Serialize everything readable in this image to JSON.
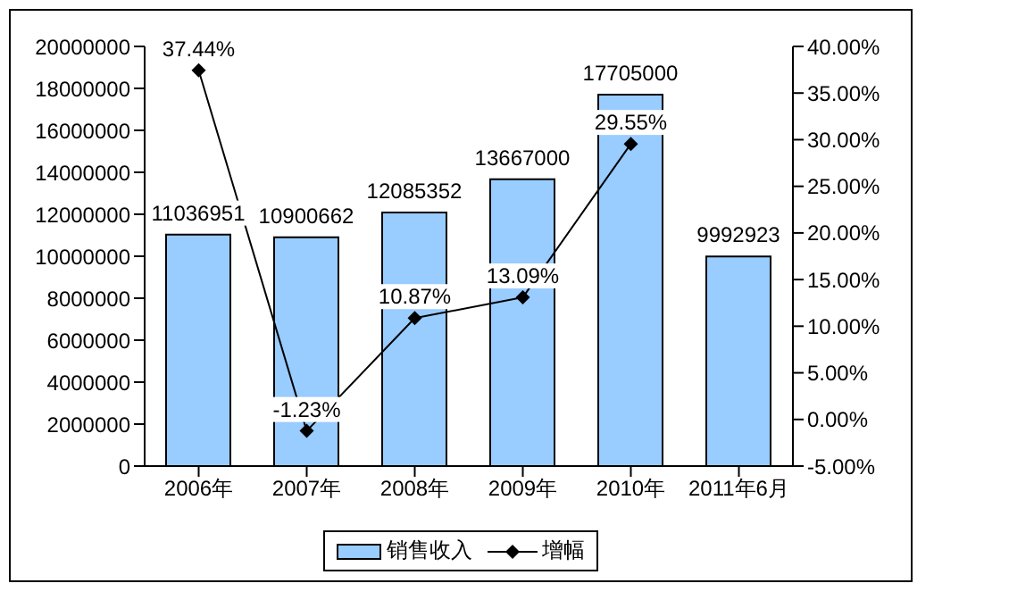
{
  "chart_data": {
    "type": "bar",
    "categories": [
      "2006年",
      "2007年",
      "2008年",
      "2009年",
      "2010年",
      "2011年6月"
    ],
    "series": [
      {
        "name": "销售收入",
        "color": "#99ccff",
        "values": [
          11036951,
          10900662,
          12085352,
          13667000,
          17705000,
          9992923
        ],
        "value_labels": [
          "11036951",
          "10900662",
          "12085352",
          "13667000",
          "17705000",
          "9992923"
        ]
      },
      {
        "name": "增幅",
        "type": "line",
        "axis": "y2",
        "color": "#000000",
        "values": [
          37.44,
          -1.23,
          10.87,
          13.09,
          29.55,
          null
        ],
        "value_labels": [
          "37.44%",
          "-1.23%",
          "10.87%",
          "13.09%",
          "29.55%",
          null
        ]
      }
    ],
    "ylim": [
      0,
      20000000
    ],
    "yticks": [
      0,
      2000000,
      4000000,
      6000000,
      8000000,
      10000000,
      12000000,
      14000000,
      16000000,
      18000000,
      20000000
    ],
    "y2lim": [
      -5,
      40
    ],
    "y2ticks": [
      {
        "value": -5,
        "label": "-5.00%"
      },
      {
        "value": 0,
        "label": "0.00%"
      },
      {
        "value": 5,
        "label": "5.00%"
      },
      {
        "value": 10,
        "label": "10.00%"
      },
      {
        "value": 15,
        "label": "15.00%"
      },
      {
        "value": 20,
        "label": "20.00%"
      },
      {
        "value": 25,
        "label": "25.00%"
      },
      {
        "value": 30,
        "label": "30.00%"
      },
      {
        "value": 35,
        "label": "35.00%"
      },
      {
        "value": 40,
        "label": "40.00%"
      }
    ],
    "legend": "bottom",
    "marker": "diamond",
    "grid": false
  }
}
